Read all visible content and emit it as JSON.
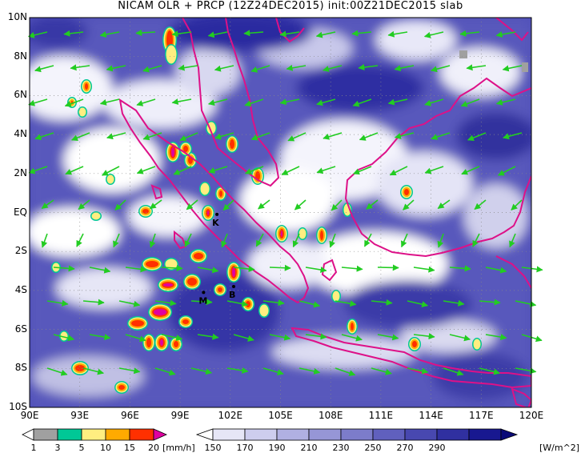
{
  "title": "NICAM OLR + PRCP (12Z24DEC2015) init:00Z21DEC2015 slab",
  "lat_labels": [
    "10N",
    "8N",
    "6N",
    "4N",
    "2N",
    "EQ",
    "2S",
    "4S",
    "6S",
    "8S",
    "10S"
  ],
  "lon_labels": [
    "90E",
    "93E",
    "96E",
    "99E",
    "102E",
    "105E",
    "108E",
    "111E",
    "114E",
    "117E",
    "120E"
  ],
  "stations": [
    {
      "code": "K",
      "lon": 101.2,
      "lat": -0.1
    },
    {
      "code": "M",
      "lon": 100.4,
      "lat": -4.1
    },
    {
      "code": "B",
      "lon": 102.2,
      "lat": -3.8
    }
  ],
  "precip_colorbar": {
    "ticks": [
      "1",
      "3",
      "5",
      "10",
      "15",
      "20"
    ],
    "unit": "[mm/h]",
    "colors": [
      "#ffffff",
      "#a0a0a0",
      "#00c896",
      "#ffee80",
      "#ffaa00",
      "#ff3000",
      "#e000a0"
    ]
  },
  "olr_colorbar": {
    "ticks": [
      "150",
      "170",
      "190",
      "210",
      "230",
      "250",
      "270",
      "290"
    ],
    "unit": "[W/m^2]",
    "colors": [
      "#ffffff",
      "#e6e6f6",
      "#cdcdee",
      "#b0b0e2",
      "#9696d6",
      "#7c7cca",
      "#6060be",
      "#4848b0",
      "#3030a0",
      "#181890",
      "#0a0a78"
    ]
  },
  "colors": {
    "coast": "#dd1188",
    "wind": "#22cc22",
    "grid": "#888888"
  }
}
